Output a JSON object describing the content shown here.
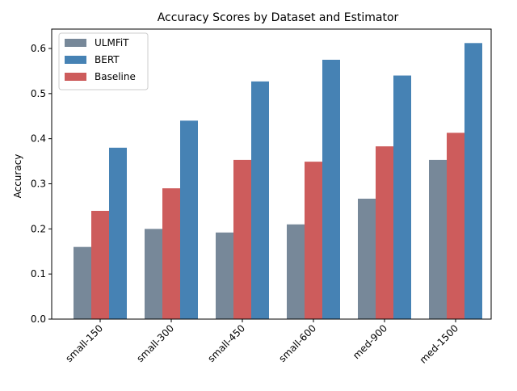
{
  "chart_data": {
    "type": "bar",
    "title": "Accuracy Scores by Dataset and Estimator",
    "xlabel": "",
    "ylabel": "Accuracy",
    "categories": [
      "small-150",
      "small-300",
      "small-450",
      "small-600",
      "med-900",
      "med-1500"
    ],
    "series": [
      {
        "name": "ULMFiT",
        "color": "#778899",
        "values": [
          0.16,
          0.2,
          0.192,
          0.21,
          0.267,
          0.353
        ]
      },
      {
        "name": "Baseline",
        "color": "#cd5c5c",
        "values": [
          0.24,
          0.29,
          0.353,
          0.349,
          0.383,
          0.413
        ]
      },
      {
        "name": "BERT",
        "color": "#4682b4",
        "values": [
          0.38,
          0.44,
          0.527,
          0.575,
          0.54,
          0.612
        ]
      }
    ],
    "legend_order": [
      "ULMFiT",
      "BERT",
      "Baseline"
    ],
    "legend_position": "top-left",
    "ylim": [
      0,
      0.643
    ],
    "yticks": [
      "0.0",
      "0.1",
      "0.2",
      "0.3",
      "0.4",
      "0.5",
      "0.6"
    ],
    "grid": false
  }
}
